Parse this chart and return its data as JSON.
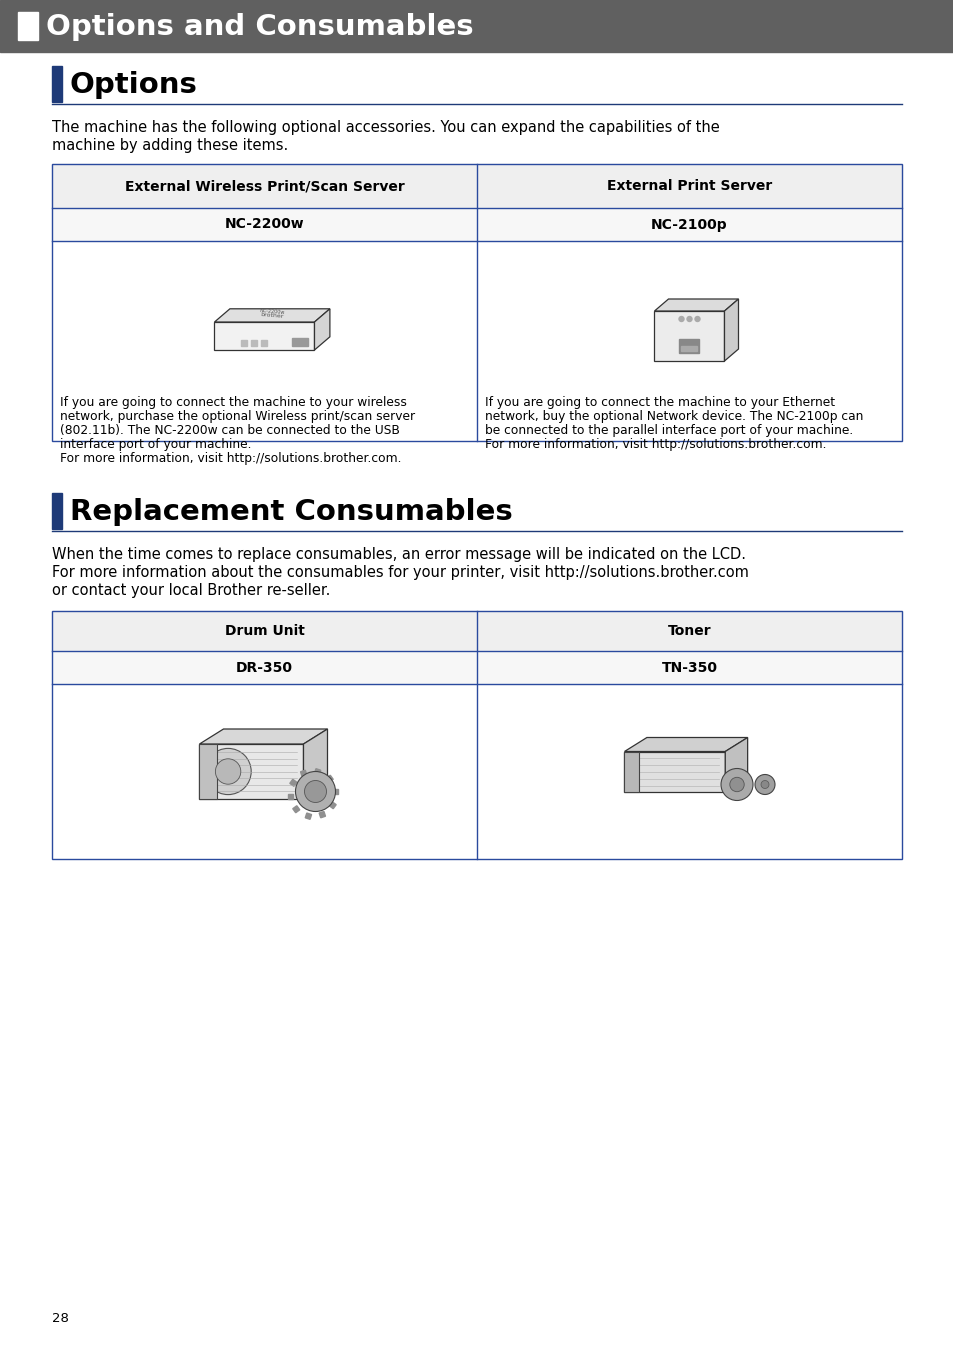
{
  "page_bg": "#ffffff",
  "header_bg": "#606060",
  "header_text": "Options and Consumables",
  "header_text_color": "#ffffff",
  "section1_title": "Options",
  "section1_bar_color": "#1e3a78",
  "section1_underline_color": "#1e3a78",
  "section1_intro_line1": "The machine has the following optional accessories. You can expand the capabilities of the",
  "section1_intro_line2": "machine by adding these items.",
  "table1_col1_header": "External Wireless Print/Scan Server",
  "table1_col2_header": "External Print Server",
  "table1_col1_model": "NC-2200w",
  "table1_col2_model": "NC-2100p",
  "table1_col1_desc_line1": "If you are going to connect the machine to your wireless",
  "table1_col1_desc_line2": "network, purchase the optional Wireless print/scan server",
  "table1_col1_desc_line3": "(802.11b). The NC-2200w can be connected to the USB",
  "table1_col1_desc_line4": "interface port of your machine.",
  "table1_col1_desc_line5": "For more information, visit http://solutions.brother.com.",
  "table1_col2_desc_line1": "If you are going to connect the machine to your Ethernet",
  "table1_col2_desc_line2": "network, buy the optional Network device. The NC-2100p can",
  "table1_col2_desc_line3": "be connected to the parallel interface port of your machine.",
  "table1_col2_desc_line4": "For more information, visit http://solutions.brother.com.",
  "section2_title": "Replacement Consumables",
  "section2_bar_color": "#1e3a78",
  "section2_intro_line1": "When the time comes to replace consumables, an error message will be indicated on the LCD.",
  "section2_intro_line2": "For more information about the consumables for your printer, visit http://solutions.brother.com",
  "section2_intro_line3": "or contact your local Brother re-seller.",
  "table2_col1_header": "Drum Unit",
  "table2_col2_header": "Toner",
  "table2_col1_model": "DR-350",
  "table2_col2_model": "TN-350",
  "table_border_color": "#2a4a9e",
  "page_number": "28"
}
